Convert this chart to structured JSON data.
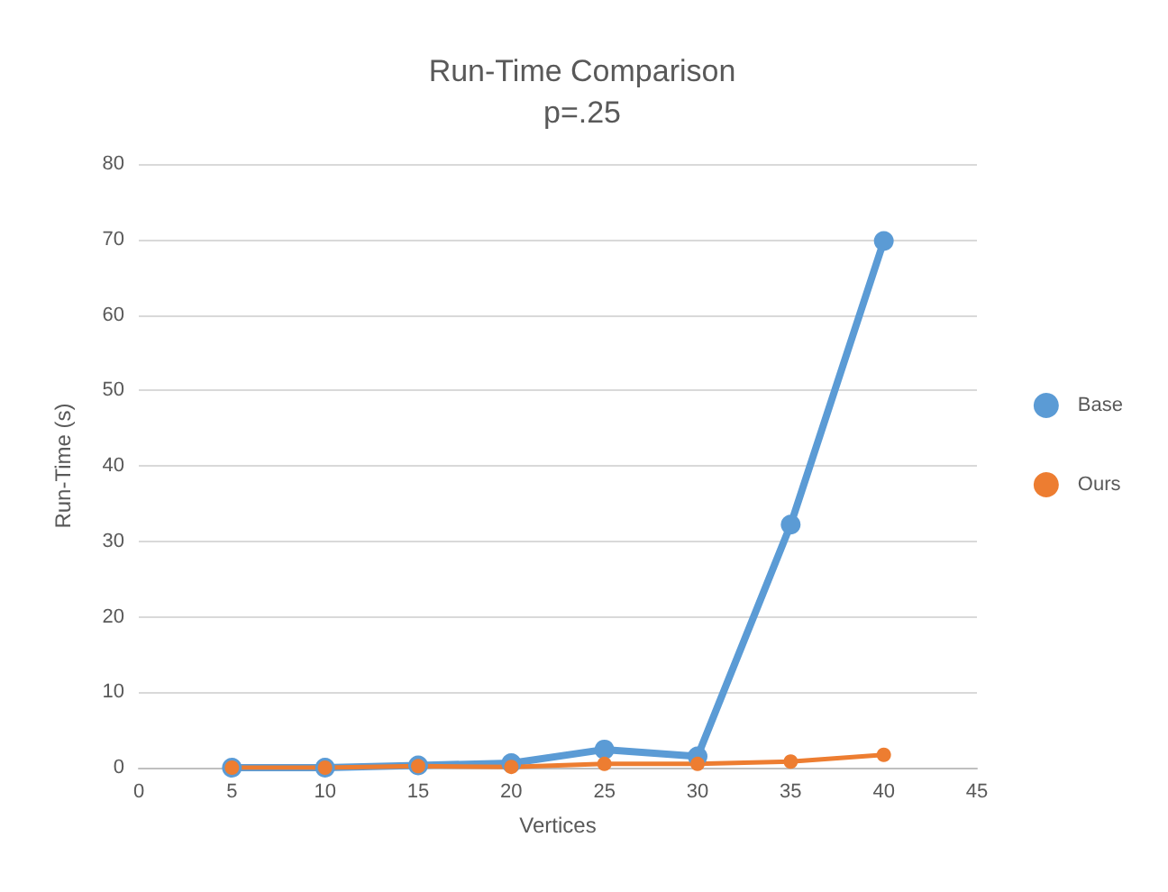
{
  "chart_data": {
    "type": "line",
    "title": "Run-Time Comparison",
    "subtitle": "p=.25",
    "xlabel": "Vertices",
    "ylabel": "Run-Time (s)",
    "x": [
      5,
      10,
      15,
      20,
      25,
      30,
      35,
      40
    ],
    "series": [
      {
        "name": "Base",
        "color": "#5b9bd5",
        "values": [
          0,
          0,
          0.3,
          0.6,
          2.4,
          1.5,
          32.2,
          69.8
        ]
      },
      {
        "name": "Ours",
        "color": "#ed7d31",
        "values": [
          0,
          0,
          0.2,
          0.1,
          0.5,
          0.5,
          0.8,
          1.7
        ]
      }
    ],
    "xlim": [
      0,
      45
    ],
    "xticks": [
      0,
      5,
      10,
      15,
      20,
      25,
      30,
      35,
      40,
      45
    ],
    "ylim": [
      0,
      80
    ],
    "yticks": [
      0,
      10,
      20,
      30,
      40,
      50,
      60,
      70,
      80
    ],
    "grid": "y",
    "legend": "right",
    "marker": "circle",
    "line_style": "solid"
  }
}
